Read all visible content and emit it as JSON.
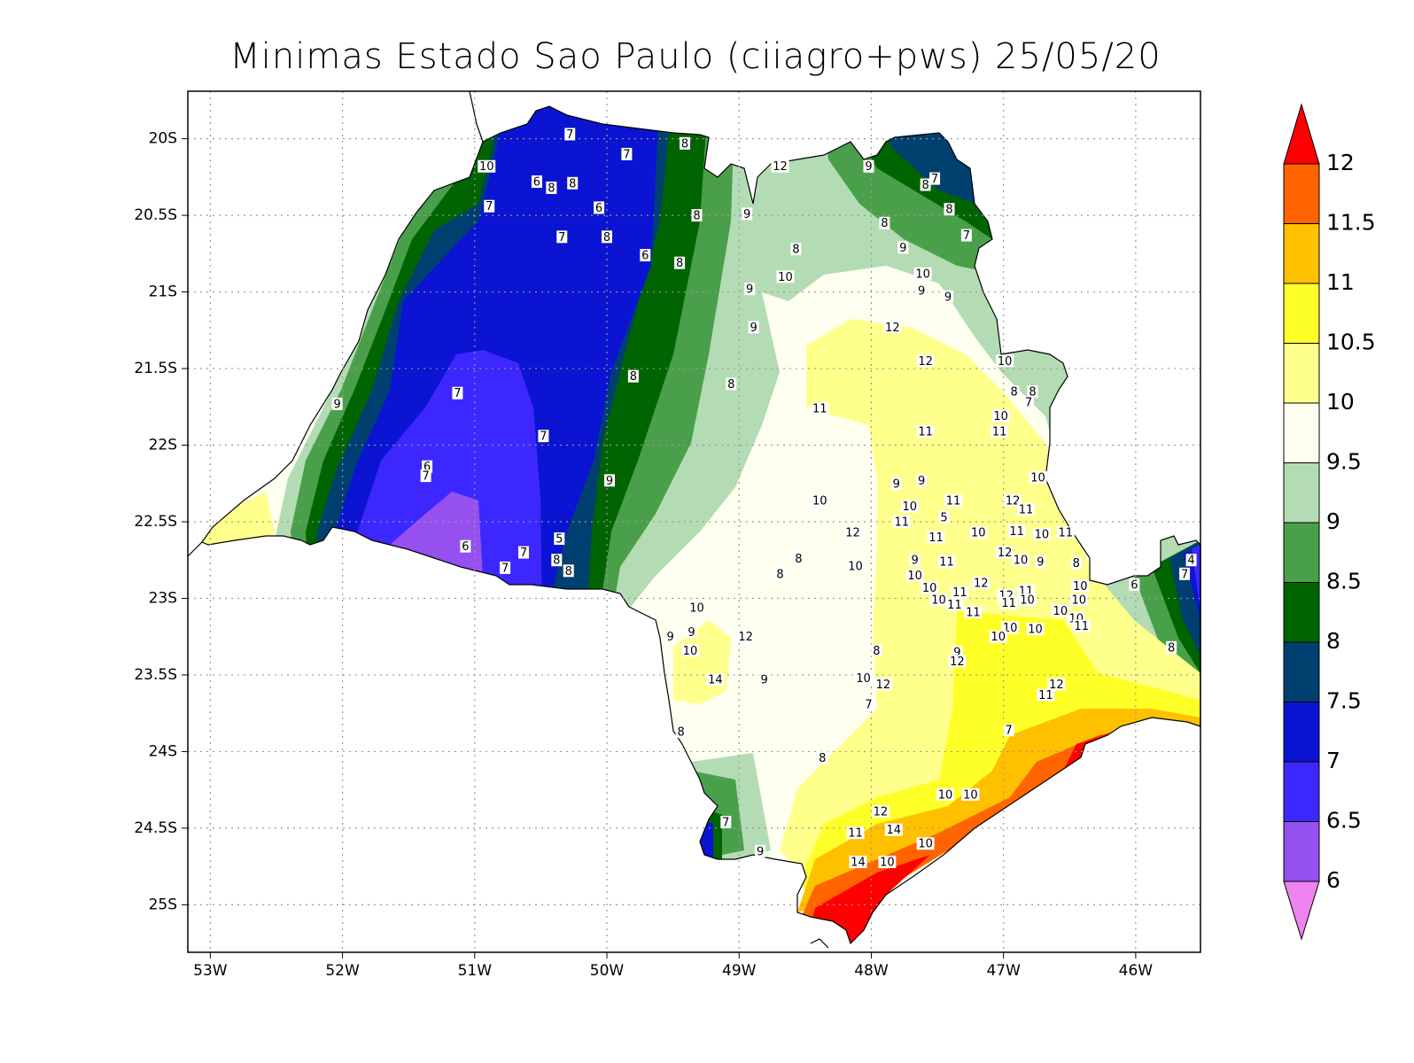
{
  "chart_data": {
    "type": "contour-map",
    "title": "Minimas Estado Sao Paulo (ciiagro+pws) 25/05/20",
    "xlim": [
      -53.17,
      -45.51
    ],
    "ylim": [
      -25.31,
      -19.69
    ],
    "xticks": [
      {
        "value": -53,
        "label": "53W"
      },
      {
        "value": -52,
        "label": "52W"
      },
      {
        "value": -51,
        "label": "51W"
      },
      {
        "value": -50,
        "label": "50W"
      },
      {
        "value": -49,
        "label": "49W"
      },
      {
        "value": -48,
        "label": "48W"
      },
      {
        "value": -47,
        "label": "47W"
      },
      {
        "value": -46,
        "label": "46W"
      }
    ],
    "yticks": [
      {
        "value": -20,
        "label": "20S"
      },
      {
        "value": -20.5,
        "label": "20.5S"
      },
      {
        "value": -21,
        "label": "21S"
      },
      {
        "value": -21.5,
        "label": "21.5S"
      },
      {
        "value": -22,
        "label": "22S"
      },
      {
        "value": -22.5,
        "label": "22.5S"
      },
      {
        "value": -23,
        "label": "23S"
      },
      {
        "value": -23.5,
        "label": "23.5S"
      },
      {
        "value": -24,
        "label": "24S"
      },
      {
        "value": -24.5,
        "label": "24.5S"
      },
      {
        "value": -25,
        "label": "25S"
      }
    ],
    "grid": true,
    "colorbar": {
      "levels": [
        6,
        6.5,
        7,
        7.5,
        8,
        8.5,
        9,
        9.5,
        10,
        10.5,
        11,
        11.5,
        12
      ],
      "colors": [
        "#ee82ee",
        "#9650f0",
        "#3c28ff",
        "#0a14d2",
        "#004070",
        "#006400",
        "#4aa04a",
        "#b4dcb4",
        "#fffff0",
        "#ffff8c",
        "#ffff28",
        "#ffc000",
        "#ff6400",
        "#ff0000"
      ]
    },
    "stations": {
      "lon": [
        -50.28,
        -49.85,
        -49.41,
        -50.91,
        -50.53,
        -50.42,
        -50.26,
        -50.89,
        -50.06,
        -49.32,
        -48.94,
        -50.34,
        -50.0,
        -49.71,
        -49.45,
        -48.69,
        -48.02,
        -47.59,
        -47.52,
        -47.41,
        -47.9,
        -47.28,
        -47.76,
        -48.57,
        -48.65,
        -48.92,
        -47.61,
        -47.62,
        -47.42,
        -48.89,
        -47.84,
        -47.59,
        -46.99,
        -49.8,
        -49.06,
        -51.13,
        -52.04,
        -46.92,
        -46.78,
        -46.81,
        -48.39,
        -47.02,
        -47.03,
        -47.59,
        -50.48,
        -51.36,
        -51.37,
        -49.98,
        -47.81,
        -47.62,
        -46.74,
        -48.39,
        -47.38,
        -46.93,
        -47.71,
        -46.83,
        -47.45,
        -47.77,
        -48.14,
        -47.51,
        -47.19,
        -46.9,
        -46.71,
        -46.53,
        -50.36,
        -51.07,
        -50.63,
        -50.38,
        -50.29,
        -50.77,
        -48.55,
        -48.69,
        -48.12,
        -47.67,
        -47.43,
        -46.99,
        -46.87,
        -46.72,
        -46.45,
        -47.67,
        -47.56,
        -47.33,
        -47.17,
        -46.98,
        -46.83,
        -46.42,
        -46.01,
        -45.58,
        -45.63,
        -47.49,
        -47.37,
        -47.23,
        -46.96,
        -46.82,
        -46.57,
        -46.43,
        -46.45,
        -46.41,
        -49.32,
        -49.52,
        -49.36,
        -48.95,
        -49.37,
        -46.95,
        -46.76,
        -47.04,
        -47.96,
        -47.35,
        -47.35,
        -45.73,
        -49.18,
        -48.81,
        -48.06,
        -47.91,
        -46.6,
        -46.68,
        -48.02,
        -46.96,
        -49.44,
        -48.37,
        -47.44,
        -47.25,
        -47.93,
        -49.1,
        -48.12,
        -47.83,
        -47.59,
        -48.84,
        -48.1,
        -47.88
      ],
      "lat": [
        -19.97,
        -20.1,
        -20.03,
        -20.18,
        -20.28,
        -20.32,
        -20.29,
        -20.44,
        -20.45,
        -20.5,
        -20.49,
        -20.64,
        -20.64,
        -20.76,
        -20.81,
        -20.18,
        -20.18,
        -20.3,
        -20.26,
        -20.46,
        -20.55,
        -20.63,
        -20.71,
        -20.72,
        -20.9,
        -20.98,
        -20.88,
        -20.99,
        -21.03,
        -21.23,
        -21.23,
        -21.45,
        -21.45,
        -21.55,
        -21.6,
        -21.66,
        -21.73,
        -21.65,
        -21.65,
        -21.72,
        -21.76,
        -21.81,
        -21.91,
        -21.91,
        -21.94,
        -22.14,
        -22.2,
        -22.23,
        -22.25,
        -22.23,
        -22.21,
        -22.36,
        -22.36,
        -22.36,
        -22.4,
        -22.42,
        -22.47,
        -22.5,
        -22.57,
        -22.6,
        -22.57,
        -22.56,
        -22.58,
        -22.57,
        -22.61,
        -22.66,
        -22.7,
        -22.75,
        -22.82,
        -22.8,
        -22.74,
        -22.84,
        -22.79,
        -22.75,
        -22.76,
        -22.7,
        -22.75,
        -22.76,
        -22.77,
        -22.85,
        -22.93,
        -22.96,
        -22.9,
        -22.98,
        -22.95,
        -22.92,
        -22.91,
        -22.75,
        -22.84,
        -23.01,
        -23.04,
        -23.09,
        -23.03,
        -23.01,
        -23.08,
        -23.01,
        -23.13,
        -23.18,
        -23.06,
        -23.25,
        -23.22,
        -23.25,
        -23.34,
        -23.19,
        -23.2,
        -23.25,
        -23.34,
        -23.35,
        -23.41,
        -23.32,
        -23.53,
        -23.53,
        -23.52,
        -23.56,
        -23.56,
        -23.63,
        -23.69,
        -23.86,
        -23.87,
        -24.04,
        -24.28,
        -24.28,
        -24.39,
        -24.46,
        -24.53,
        -24.51,
        -24.6,
        -24.65,
        -24.72,
        -24.72
      ],
      "values": [
        7,
        7,
        8,
        10,
        6,
        8,
        8,
        7,
        6,
        8,
        9,
        7,
        8,
        6,
        8,
        12,
        9,
        8,
        7,
        8,
        8,
        7,
        9,
        8,
        10,
        9,
        10,
        9,
        9,
        9,
        12,
        12,
        10,
        8,
        8,
        7,
        9,
        8,
        8,
        7,
        11,
        10,
        11,
        11,
        7,
        6,
        7,
        9,
        9,
        9,
        10,
        10,
        11,
        12,
        10,
        11,
        5,
        11,
        12,
        11,
        10,
        11,
        10,
        11,
        5,
        6,
        7,
        8,
        8,
        7,
        8,
        8,
        10,
        9,
        11,
        12,
        10,
        9,
        8,
        10,
        10,
        11,
        12,
        12,
        11,
        10,
        6,
        4,
        7,
        10,
        11,
        11,
        11,
        10,
        10,
        10,
        10,
        11,
        10,
        9,
        9,
        12,
        10,
        10,
        10,
        10,
        8,
        9,
        12,
        8,
        14,
        9,
        10,
        12,
        12,
        11,
        7,
        7,
        8,
        8,
        10,
        10,
        12,
        7,
        11,
        14,
        10,
        9,
        14,
        10
      ]
    }
  }
}
